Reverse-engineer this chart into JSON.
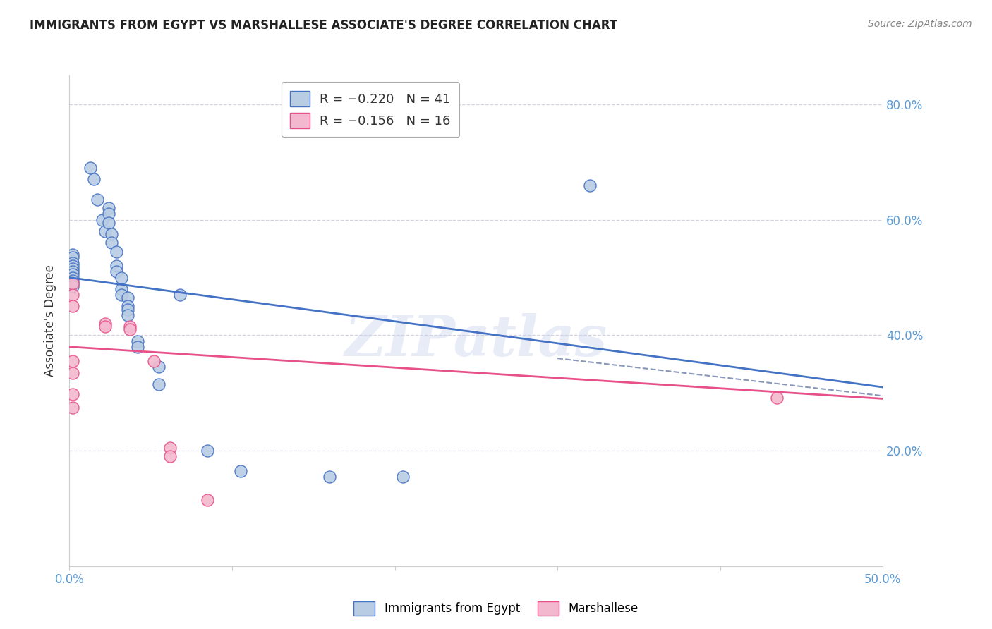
{
  "title": "IMMIGRANTS FROM EGYPT VS MARSHALLESE ASSOCIATE'S DEGREE CORRELATION CHART",
  "source": "Source: ZipAtlas.com",
  "ylabel": "Associate's Degree",
  "xmin": 0.0,
  "xmax": 0.5,
  "ymin": 0.0,
  "ymax": 0.85,
  "xticks": [
    0.0,
    0.1,
    0.2,
    0.3,
    0.4,
    0.5
  ],
  "xticklabels": [
    "0.0%",
    "",
    "",
    "",
    "",
    "50.0%"
  ],
  "yticks": [
    0.2,
    0.4,
    0.6,
    0.8
  ],
  "yticklabels": [
    "20.0%",
    "40.0%",
    "60.0%",
    "80.0%"
  ],
  "legend_items": [
    {
      "label": "R = −0.220   N = 41",
      "color": "#aec6e8"
    },
    {
      "label": "R = −0.156   N = 16",
      "color": "#f7b6c2"
    }
  ],
  "blue_points": [
    [
      0.002,
      0.54
    ],
    [
      0.002,
      0.535
    ],
    [
      0.002,
      0.525
    ],
    [
      0.002,
      0.52
    ],
    [
      0.002,
      0.515
    ],
    [
      0.002,
      0.51
    ],
    [
      0.002,
      0.505
    ],
    [
      0.002,
      0.5
    ],
    [
      0.002,
      0.495
    ],
    [
      0.002,
      0.49
    ],
    [
      0.002,
      0.485
    ],
    [
      0.013,
      0.69
    ],
    [
      0.015,
      0.67
    ],
    [
      0.017,
      0.635
    ],
    [
      0.02,
      0.6
    ],
    [
      0.022,
      0.58
    ],
    [
      0.024,
      0.62
    ],
    [
      0.024,
      0.61
    ],
    [
      0.024,
      0.595
    ],
    [
      0.026,
      0.575
    ],
    [
      0.026,
      0.56
    ],
    [
      0.029,
      0.545
    ],
    [
      0.029,
      0.52
    ],
    [
      0.029,
      0.51
    ],
    [
      0.032,
      0.5
    ],
    [
      0.032,
      0.48
    ],
    [
      0.032,
      0.47
    ],
    [
      0.036,
      0.465
    ],
    [
      0.036,
      0.45
    ],
    [
      0.036,
      0.445
    ],
    [
      0.036,
      0.435
    ],
    [
      0.042,
      0.39
    ],
    [
      0.042,
      0.38
    ],
    [
      0.055,
      0.345
    ],
    [
      0.055,
      0.315
    ],
    [
      0.068,
      0.47
    ],
    [
      0.085,
      0.2
    ],
    [
      0.105,
      0.165
    ],
    [
      0.16,
      0.155
    ],
    [
      0.205,
      0.155
    ],
    [
      0.32,
      0.66
    ]
  ],
  "pink_points": [
    [
      0.002,
      0.49
    ],
    [
      0.002,
      0.47
    ],
    [
      0.002,
      0.45
    ],
    [
      0.002,
      0.355
    ],
    [
      0.002,
      0.335
    ],
    [
      0.002,
      0.298
    ],
    [
      0.002,
      0.275
    ],
    [
      0.022,
      0.42
    ],
    [
      0.022,
      0.415
    ],
    [
      0.037,
      0.415
    ],
    [
      0.037,
      0.41
    ],
    [
      0.052,
      0.355
    ],
    [
      0.062,
      0.205
    ],
    [
      0.062,
      0.19
    ],
    [
      0.085,
      0.115
    ],
    [
      0.435,
      0.292
    ]
  ],
  "blue_line_x": [
    0.0,
    0.5
  ],
  "blue_line_y": [
    0.5,
    0.31
  ],
  "pink_line_x": [
    0.0,
    0.5
  ],
  "pink_line_y": [
    0.38,
    0.29
  ],
  "dashed_line_x": [
    0.3,
    0.5
  ],
  "dashed_line_y": [
    0.36,
    0.295
  ],
  "blue_color": "#4472c4",
  "pink_color": "#e8508a",
  "blue_fill": "#b8cce4",
  "pink_fill": "#f4b8ce",
  "dashed_color": "#8896b8",
  "watermark_text": "ZIPatlas",
  "background_color": "#ffffff",
  "grid_color": "#c8c8d8",
  "tick_color": "#5b9bd5",
  "title_color": "#222222",
  "source_color": "#888888"
}
